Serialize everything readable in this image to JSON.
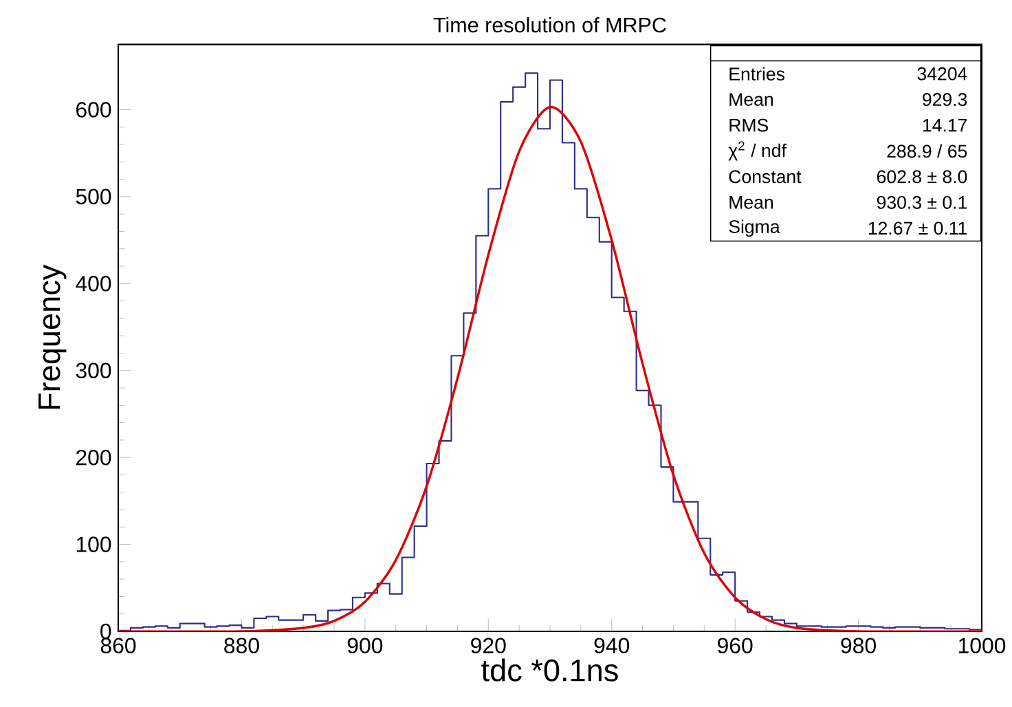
{
  "chart_data": {
    "type": "histogram",
    "title": "Time resolution of MRPC",
    "xlabel": "tdc *0.1ns",
    "ylabel": "Frequency",
    "xlim": [
      860,
      1000
    ],
    "ylim": [
      0,
      675
    ],
    "xticks": [
      860,
      880,
      900,
      920,
      940,
      960,
      980,
      1000
    ],
    "yticks": [
      0,
      100,
      200,
      300,
      400,
      500,
      600
    ],
    "grid": false,
    "line_style": "solid",
    "series": [
      {
        "color": "#2e2e8a",
        "bins": [
          860,
          862,
          864,
          866,
          868,
          870,
          872,
          874,
          876,
          878,
          880,
          882,
          884,
          886,
          888,
          890,
          892,
          894,
          896,
          898,
          900,
          902,
          904,
          906,
          908,
          910,
          912,
          914,
          916,
          918,
          920,
          922,
          924,
          926,
          928,
          930,
          932,
          934,
          936,
          938,
          940,
          942,
          944,
          946,
          948,
          950,
          952,
          954,
          956,
          958,
          960,
          962,
          964,
          966,
          968,
          970,
          972,
          974,
          976,
          978,
          980,
          982,
          984,
          986,
          988,
          990,
          992,
          994,
          996,
          998,
          1000
        ],
        "values": [
          1,
          4,
          5,
          6,
          4,
          9,
          9,
          5,
          6,
          7,
          4,
          15,
          17,
          13,
          13,
          19,
          12,
          24,
          25,
          39,
          44,
          55,
          43,
          85,
          121,
          193,
          219,
          317,
          366,
          455,
          509,
          609,
          626,
          642,
          578,
          634,
          562,
          509,
          476,
          448,
          384,
          368,
          277,
          260,
          189,
          149,
          149,
          107,
          65,
          68,
          35,
          22,
          17,
          13,
          9,
          6,
          6,
          5,
          5,
          6,
          6,
          5,
          4,
          5,
          5,
          4,
          4,
          3,
          3,
          2
        ]
      },
      {
        "type": "line",
        "color": "#e00000",
        "x": [
          860,
          880,
          890,
          895,
          900,
          905,
          910,
          915,
          920,
          925,
          930,
          935,
          940,
          945,
          950,
          955,
          960,
          965,
          970,
          980,
          1000
        ],
        "values": [
          0,
          0,
          4,
          12,
          34,
          82,
          167,
          291,
          433,
          552,
          603,
          563,
          450,
          308,
          180,
          90,
          39,
          14,
          4,
          0,
          0
        ]
      }
    ],
    "annotations": [
      "Entries",
      "34204",
      "Mean",
      "929.3",
      "RMS",
      "14.17",
      "χ$^{2}$ / ndf",
      "288.9 / 65",
      "Constant",
      "602.8 ± 8.0",
      "Mean",
      "930.3 ± 0.1",
      "Sigma",
      "12.67 ± 0.11"
    ]
  }
}
